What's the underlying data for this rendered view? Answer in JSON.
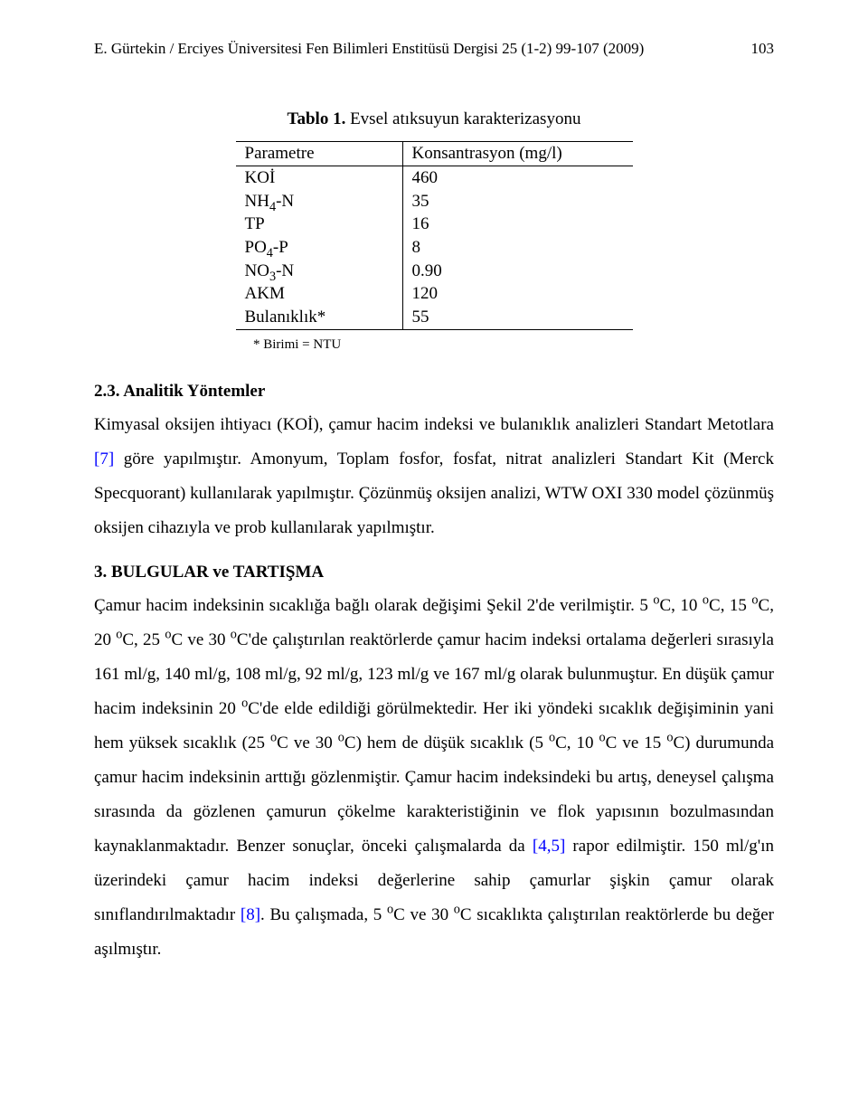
{
  "header": {
    "text": "E. Gürtekin / Erciyes Üniversitesi Fen Bilimleri Enstitüsü Dergisi 25 (1-2) 99-107 (2009)",
    "page_number": "103"
  },
  "table": {
    "type": "table",
    "caption_label": "Tablo 1.",
    "caption_text": " Evsel atıksuyun karakterizasyonu",
    "columns": [
      "Parametre",
      "Konsantrasyon (mg/l)"
    ],
    "rows": [
      {
        "param_html": "KOİ",
        "value": "460"
      },
      {
        "param_html": "NH<sub>4</sub>-N",
        "value": "35"
      },
      {
        "param_html": "TP",
        "value": "16"
      },
      {
        "param_html": "PO<sub>4</sub>-P",
        "value": "8"
      },
      {
        "param_html": "NO<sub>3</sub>-N",
        "value": "0.90"
      },
      {
        "param_html": "AKM",
        "value": "120"
      },
      {
        "param_html": "Bulanıklık*",
        "value": "55"
      }
    ],
    "footnote": "* Birimi = NTU",
    "border_color": "#000000",
    "font_size": 19
  },
  "section23": {
    "heading": "2.3. Analitik Yöntemler",
    "body_html": "Kimyasal oksijen ihtiyacı (KOİ), çamur hacim indeksi ve bulanıklık analizleri Standart Metotlara <span class=\"ref\">[7]</span> göre yapılmıştır. Amonyum, Toplam fosfor, fosfat, nitrat analizleri Standart Kit (Merck Specquorant) kullanılarak yapılmıştır. Çözünmüş oksijen analizi, WTW OXI 330 model çözünmüş oksijen cihazıyla ve prob kullanılarak yapılmıştır."
  },
  "section3": {
    "heading": "3. BULGULAR ve TARTIŞMA",
    "body_html": "Çamur hacim indeksinin sıcaklığa bağlı olarak değişimi Şekil 2'de verilmiştir. 5 <sup>o</sup>C, 10 <sup>o</sup>C, 15 <sup>o</sup>C, 20 <sup>o</sup>C, 25 <sup>o</sup>C ve 30 <sup>o</sup>C'de çalıştırılan reaktörlerde çamur hacim indeksi ortalama değerleri sırasıyla 161 ml/g, 140 ml/g, 108 ml/g, 92 ml/g, 123 ml/g ve 167 ml/g olarak bulunmuştur. En düşük çamur hacim indeksinin 20 <sup>o</sup>C'de elde edildiği görülmektedir. Her iki yöndeki sıcaklık değişiminin yani hem yüksek sıcaklık (25 <sup>o</sup>C ve 30 <sup>o</sup>C) hem de düşük sıcaklık (5 <sup>o</sup>C, 10 <sup>o</sup>C ve 15 <sup>o</sup>C) durumunda çamur hacim indeksinin arttığı gözlenmiştir. Çamur hacim indeksindeki bu artış, deneysel çalışma sırasında da gözlenen çamurun çökelme karakteristiğinin ve flok yapısının bozulmasından kaynaklanmaktadır. Benzer sonuçlar, önceki çalışmalarda da <span class=\"ref\">[4,5]</span> rapor edilmiştir. 150 ml/g'ın üzerindeki çamur hacim indeksi değerlerine sahip çamurlar şişkin çamur olarak sınıflandırılmaktadır <span class=\"ref\">[8]</span>. Bu çalışmada, 5 <sup>o</sup>C ve 30 <sup>o</sup>C sıcaklıkta çalıştırılan reaktörlerde bu değer aşılmıştır."
  }
}
